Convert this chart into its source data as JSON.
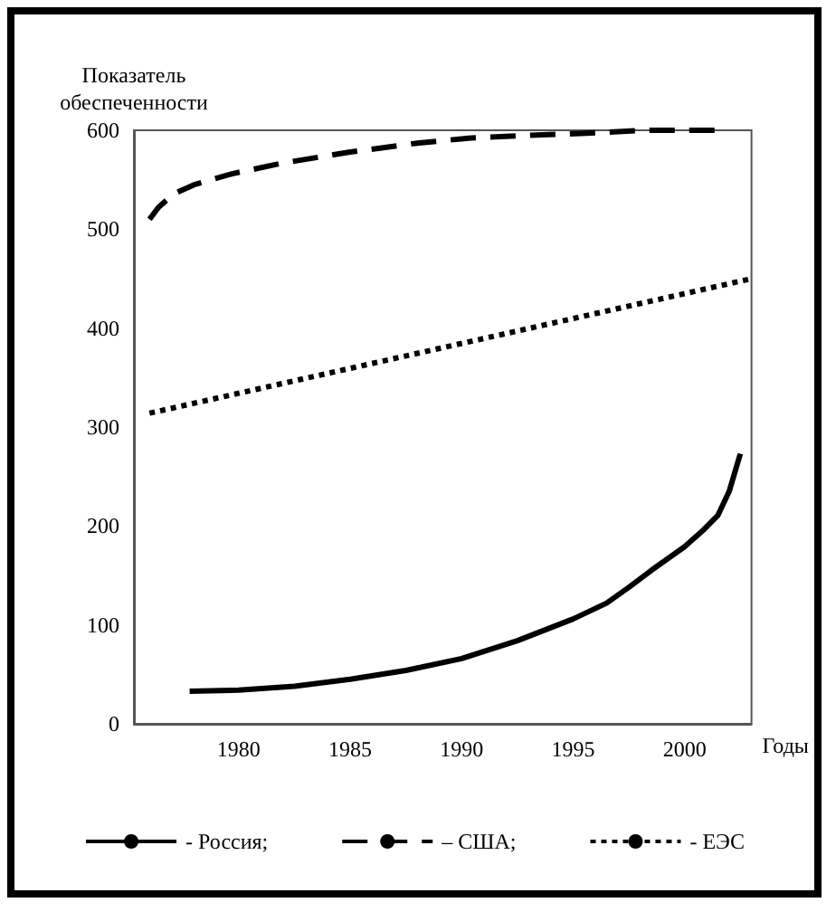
{
  "chart_data": {
    "type": "line",
    "ylabel": "Показатель\nобеспеченности",
    "xlabel": "Годы",
    "xlim": [
      1975.3,
      2003
    ],
    "xticks": [
      1980,
      1985,
      1990,
      1995,
      2000
    ],
    "ylim": [
      0,
      600
    ],
    "yticks": [
      0,
      100,
      200,
      300,
      400,
      500,
      600
    ],
    "grid": false,
    "legend": "bottom",
    "marker": "none",
    "series": [
      {
        "name": "- Россия;",
        "color": "#000000",
        "line_style": "solid",
        "x": [
          1977.8,
          1980,
          1982.5,
          1985,
          1987.5,
          1990,
          1992.5,
          1995,
          1996.5,
          1997.5,
          1998.5,
          2000,
          2000.8,
          2001.5,
          2002,
          2002.5
        ],
        "values": [
          33,
          34,
          38,
          45,
          54,
          66,
          84,
          106,
          122,
          138,
          155,
          179,
          195,
          211,
          235,
          273
        ]
      },
      {
        "name": "– США;",
        "color": "#000000",
        "line_style": "dashed",
        "x": [
          1976,
          1976.4,
          1977.1,
          1978,
          1979.7,
          1982,
          1985,
          1988,
          1990.3,
          1993,
          1995.6,
          1998.2,
          2001.9
        ],
        "values": [
          510,
          522,
          536,
          545,
          556,
          567,
          578,
          587,
          592,
          595,
          597,
          600,
          600
        ]
      },
      {
        "name": "- ЕЭС",
        "color": "#000000",
        "line_style": "dotted",
        "x": [
          1976,
          2003
        ],
        "values": [
          314,
          450
        ]
      }
    ]
  }
}
